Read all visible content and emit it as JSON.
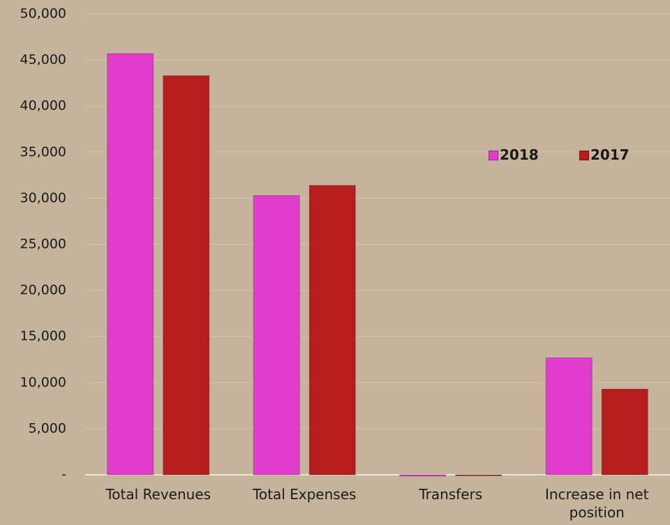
{
  "chart_data": {
    "type": "bar",
    "categories": [
      "Total Revenues",
      "Total Expenses",
      "Transfers",
      "Increase in net position"
    ],
    "series": [
      {
        "name": "2018",
        "color": "#e43bcf",
        "values": [
          45700,
          30300,
          -150,
          12700
        ]
      },
      {
        "name": "2017",
        "color": "#b81d1d",
        "values": [
          43300,
          31400,
          -100,
          9300
        ]
      }
    ],
    "ylim": [
      0,
      50000
    ],
    "yticks": [
      {
        "value": 0,
        "label": "-"
      },
      {
        "value": 5000,
        "label": "5,000"
      },
      {
        "value": 10000,
        "label": "10,000"
      },
      {
        "value": 15000,
        "label": "15,000"
      },
      {
        "value": 20000,
        "label": "20,000"
      },
      {
        "value": 25000,
        "label": "25,000"
      },
      {
        "value": 30000,
        "label": "30,000"
      },
      {
        "value": 35000,
        "label": "35,000"
      },
      {
        "value": 40000,
        "label": "40,000"
      },
      {
        "value": 45000,
        "label": "45,000"
      },
      {
        "value": 50000,
        "label": "50,000"
      }
    ],
    "grid": true,
    "legend": "right"
  }
}
